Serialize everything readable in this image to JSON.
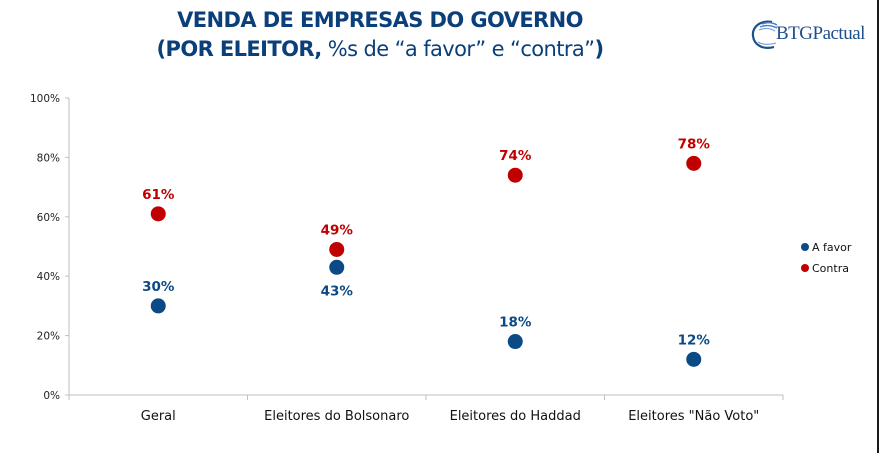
{
  "header": {
    "title_line1": "VENDA DE EMPRESAS DO GOVERNO",
    "title_line2_bold_start": "(POR ELEITOR,",
    "title_line2_regular": " %s de “a favor” e “contra”",
    "title_line2_bold_end": ")",
    "logo_text": "BTGPactual"
  },
  "colors": {
    "a_favor": "#0b4a85",
    "contra": "#c00000",
    "title": "#0b3f7a",
    "axis": "#bfbfbf"
  },
  "chart_data": {
    "type": "scatter",
    "title": "VENDA DE EMPRESAS DO GOVERNO (POR ELEITOR, %s de “a favor” e “contra”)",
    "xlabel": "",
    "ylabel": "",
    "categories": [
      "Geral",
      "Eleitores do Bolsonaro",
      "Eleitores do Haddad",
      "Eleitores \"Não Voto\""
    ],
    "ylim": [
      0,
      100
    ],
    "yticks": [
      0,
      20,
      40,
      60,
      80,
      100
    ],
    "ytick_labels": [
      "0%",
      "20%",
      "40%",
      "60%",
      "80%",
      "100%"
    ],
    "grid": false,
    "legend_position": "right",
    "series": [
      {
        "name": "A favor",
        "color": "#0b4a85",
        "values": [
          30,
          43,
          18,
          12
        ],
        "labels": [
          "30%",
          "43%",
          "18%",
          "12%"
        ],
        "label_position": [
          "above",
          "below",
          "above",
          "above"
        ]
      },
      {
        "name": "Contra",
        "color": "#c00000",
        "values": [
          61,
          49,
          74,
          78
        ],
        "labels": [
          "61%",
          "49%",
          "74%",
          "78%"
        ],
        "label_position": [
          "above",
          "above",
          "above",
          "above"
        ]
      }
    ]
  }
}
